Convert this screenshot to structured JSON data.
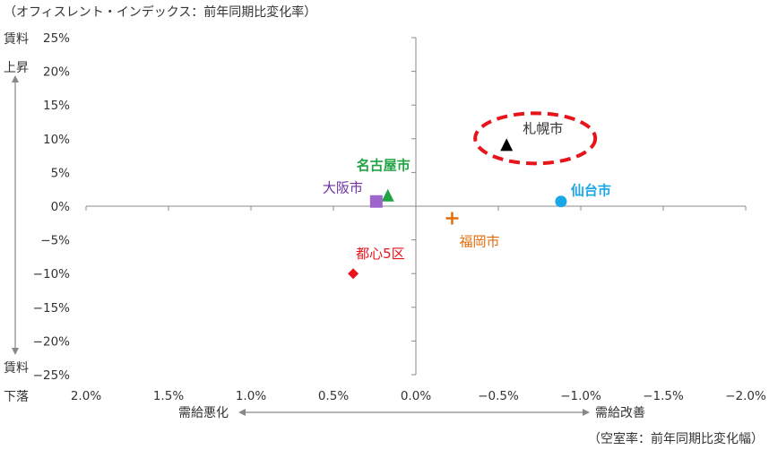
{
  "chart_data": {
    "type": "scatter",
    "title": "",
    "y_axis_note": "（オフィスレント・インデックス：前年同期比変化率）",
    "x_axis_note": "（空室率：前年同期比変化幅）",
    "xlim": [
      2.0,
      -2.0
    ],
    "ylim": [
      -25,
      25
    ],
    "x_ticks": [
      2.0,
      1.5,
      1.0,
      0.5,
      0.0,
      -0.5,
      -1.0,
      -1.5,
      -2.0
    ],
    "x_tick_labels": [
      "2.0%",
      "1.5%",
      "1.0%",
      "0.5%",
      "0.0%",
      "−0.5%",
      "−1.0%",
      "−1.5%",
      "−2.0%"
    ],
    "y_ticks": [
      25,
      20,
      15,
      10,
      5,
      0,
      -5,
      -10,
      -15,
      -20,
      -25
    ],
    "y_tick_labels": [
      "25%",
      "20%",
      "15%",
      "10%",
      "5%",
      "0%",
      "−5%",
      "−10%",
      "−15%",
      "−20%",
      "−25%"
    ],
    "grid": false,
    "up_label_1": "賃料",
    "up_label_2": "上昇",
    "down_label_1": "賃料",
    "down_label_2": "下落",
    "left_direction": "需給悪化",
    "right_direction": "需給改善",
    "points": [
      {
        "label": "札幌市",
        "x": -0.55,
        "y": 9.0,
        "marker": "triangle",
        "color": "#000000",
        "label_color": "#333333",
        "bold": false,
        "highlight": true
      },
      {
        "label": "名古屋市",
        "x": 0.17,
        "y": 1.5,
        "marker": "triangle",
        "color": "#21a443",
        "label_color": "#21a443",
        "bold": true,
        "highlight": false
      },
      {
        "label": "大阪市",
        "x": 0.24,
        "y": 0.7,
        "marker": "square",
        "color": "#9e66cc",
        "label_color": "#6f2fa0",
        "bold": false,
        "highlight": false
      },
      {
        "label": "仙台市",
        "x": -0.88,
        "y": 0.7,
        "marker": "circle",
        "color": "#1aa7e8",
        "label_color": "#1aa7e8",
        "bold": true,
        "highlight": false
      },
      {
        "label": "福岡市",
        "x": -0.22,
        "y": -1.8,
        "marker": "plus",
        "color": "#e36c09",
        "label_color": "#e36c09",
        "bold": false,
        "highlight": false
      },
      {
        "label": "都心5区",
        "x": 0.38,
        "y": -10.0,
        "marker": "diamond",
        "color": "#e8141c",
        "label_color": "#e8141c",
        "bold": false,
        "highlight": false
      }
    ],
    "highlight_color": "#e8141c"
  }
}
